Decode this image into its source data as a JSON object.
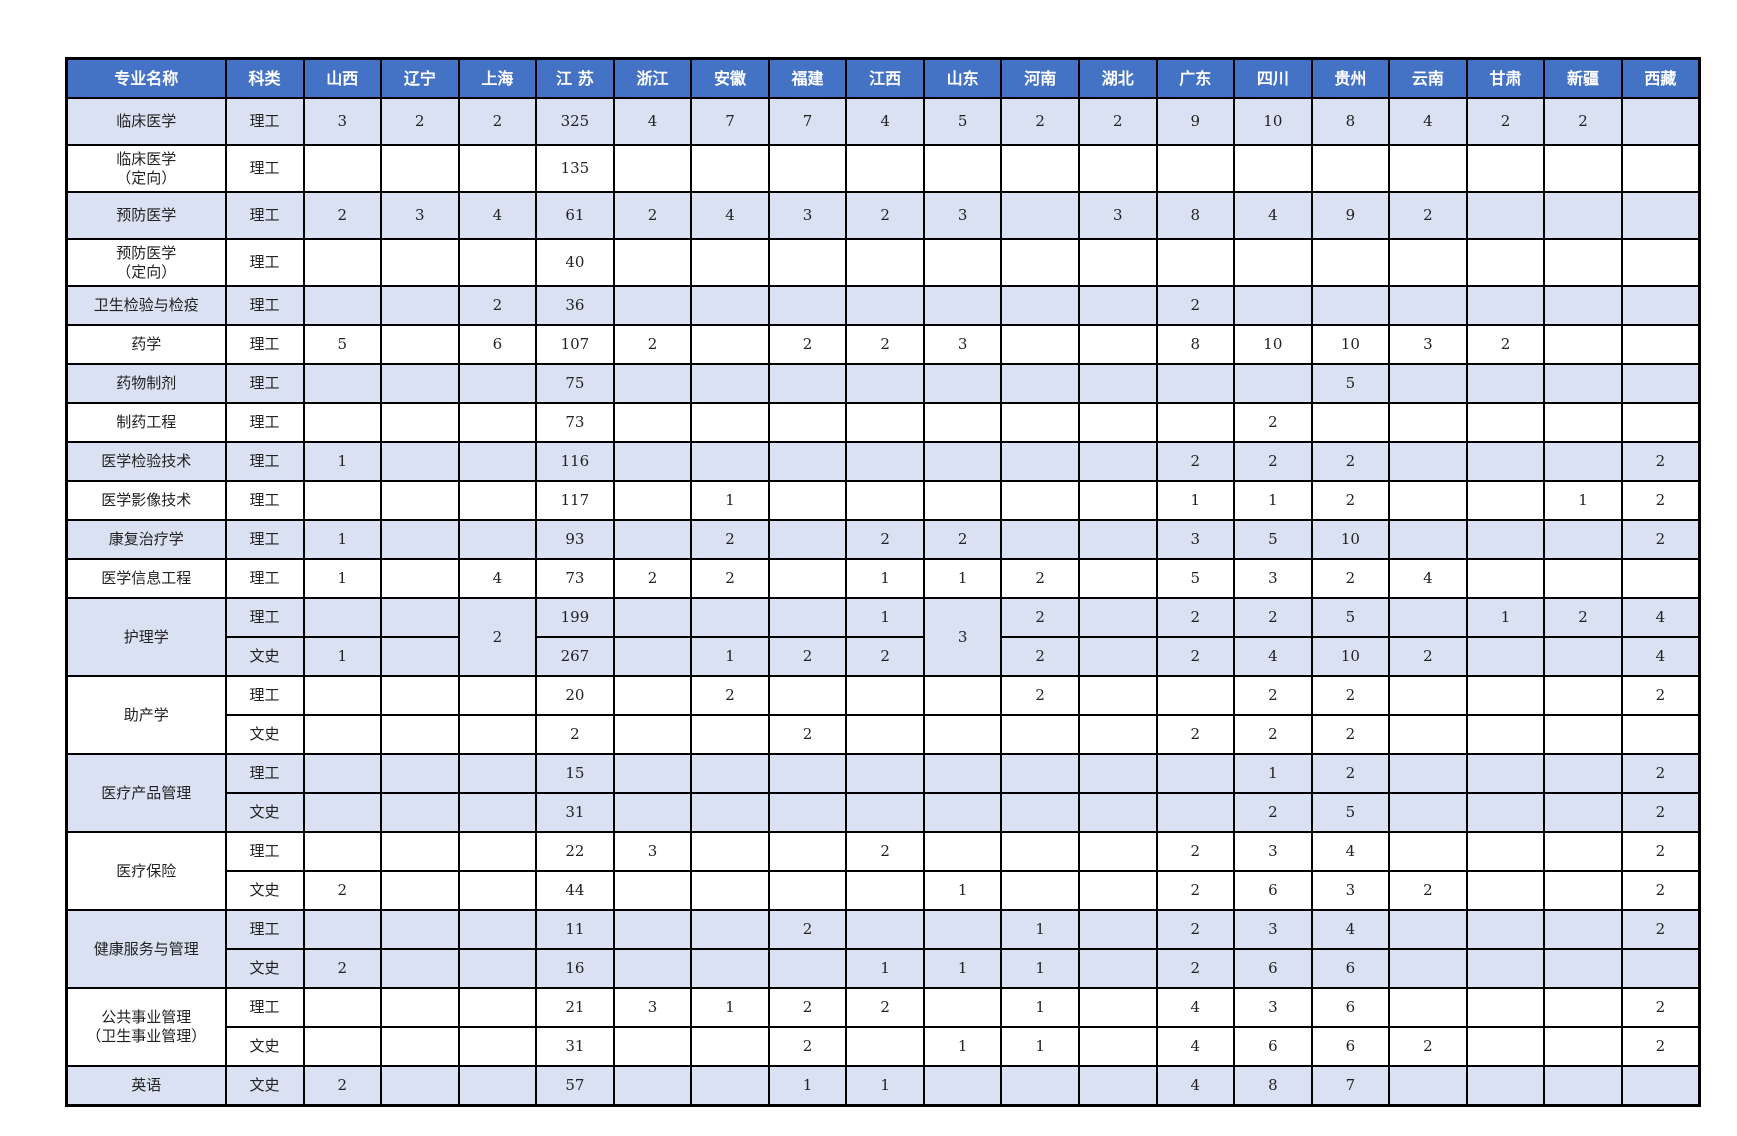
{
  "colors": {
    "header_bg": "#4472C4",
    "shade_bg": "#D9E1F2"
  },
  "headers": [
    "专业名称",
    "科类",
    "山西",
    "辽宁",
    "上海",
    "江 苏",
    "浙江",
    "安徽",
    "福建",
    "江西",
    "山东",
    "河南",
    "湖北",
    "广东",
    "四川",
    "贵州",
    "云南",
    "甘肃",
    "新疆",
    "西藏"
  ],
  "groups": [
    {
      "major": "临床医学",
      "shade": true,
      "tall": true,
      "rows": [
        {
          "cat": "理工",
          "vals": [
            "3",
            "2",
            "2",
            "325",
            "4",
            "7",
            "7",
            "4",
            "5",
            "2",
            "2",
            "9",
            "10",
            "8",
            "4",
            "2",
            "2",
            ""
          ]
        }
      ]
    },
    {
      "major": "临床医学\n（定向）",
      "shade": false,
      "tall": true,
      "rows": [
        {
          "cat": "理工",
          "vals": [
            "",
            "",
            "",
            "135",
            "",
            "",
            "",
            "",
            "",
            "",
            "",
            "",
            "",
            "",
            "",
            "",
            "",
            ""
          ]
        }
      ]
    },
    {
      "major": "预防医学",
      "shade": true,
      "tall": true,
      "rows": [
        {
          "cat": "理工",
          "vals": [
            "2",
            "3",
            "4",
            "61",
            "2",
            "4",
            "3",
            "2",
            "3",
            "",
            "3",
            "8",
            "4",
            "9",
            "2",
            "",
            "",
            ""
          ]
        }
      ]
    },
    {
      "major": "预防医学\n（定向）",
      "shade": false,
      "tall": true,
      "rows": [
        {
          "cat": "理工",
          "vals": [
            "",
            "",
            "",
            "40",
            "",
            "",
            "",
            "",
            "",
            "",
            "",
            "",
            "",
            "",
            "",
            "",
            "",
            ""
          ]
        }
      ]
    },
    {
      "major": "卫生检验与检疫",
      "shade": true,
      "rows": [
        {
          "cat": "理工",
          "vals": [
            "",
            "",
            "2",
            "36",
            "",
            "",
            "",
            "",
            "",
            "",
            "",
            "2",
            "",
            "",
            "",
            "",
            "",
            ""
          ]
        }
      ]
    },
    {
      "major": "药学",
      "shade": false,
      "rows": [
        {
          "cat": "理工",
          "vals": [
            "5",
            "",
            "6",
            "107",
            "2",
            "",
            "2",
            "2",
            "3",
            "",
            "",
            "8",
            "10",
            "10",
            "3",
            "2",
            "",
            ""
          ]
        }
      ]
    },
    {
      "major": "药物制剂",
      "shade": true,
      "rows": [
        {
          "cat": "理工",
          "vals": [
            "",
            "",
            "",
            "75",
            "",
            "",
            "",
            "",
            "",
            "",
            "",
            "",
            "",
            "5",
            "",
            "",
            "",
            ""
          ]
        }
      ]
    },
    {
      "major": "制药工程",
      "shade": false,
      "rows": [
        {
          "cat": "理工",
          "vals": [
            "",
            "",
            "",
            "73",
            "",
            "",
            "",
            "",
            "",
            "",
            "",
            "",
            "2",
            "",
            "",
            "",
            "",
            ""
          ]
        }
      ]
    },
    {
      "major": "医学检验技术",
      "shade": true,
      "rows": [
        {
          "cat": "理工",
          "vals": [
            "1",
            "",
            "",
            "116",
            "",
            "",
            "",
            "",
            "",
            "",
            "",
            "2",
            "2",
            "2",
            "",
            "",
            "",
            "2"
          ]
        }
      ]
    },
    {
      "major": "医学影像技术",
      "shade": false,
      "rows": [
        {
          "cat": "理工",
          "vals": [
            "",
            "",
            "",
            "117",
            "",
            "1",
            "",
            "",
            "",
            "",
            "",
            "1",
            "1",
            "2",
            "",
            "",
            "1",
            "2"
          ]
        }
      ]
    },
    {
      "major": "康复治疗学",
      "shade": true,
      "rows": [
        {
          "cat": "理工",
          "vals": [
            "1",
            "",
            "",
            "93",
            "",
            "2",
            "",
            "2",
            "2",
            "",
            "",
            "3",
            "5",
            "10",
            "",
            "",
            "",
            "2"
          ]
        }
      ]
    },
    {
      "major": "医学信息工程",
      "shade": false,
      "rows": [
        {
          "cat": "理工",
          "vals": [
            "1",
            "",
            "4",
            "73",
            "2",
            "2",
            "",
            "1",
            "1",
            "2",
            "",
            "5",
            "3",
            "2",
            "4",
            "",
            "",
            ""
          ]
        }
      ]
    },
    {
      "major": "护理学",
      "shade": true,
      "merge": [
        2,
        8
      ],
      "rows": [
        {
          "cat": "理工",
          "vals": [
            "",
            "",
            "2",
            "199",
            "",
            "",
            "",
            "1",
            "3",
            "2",
            "",
            "2",
            "2",
            "5",
            "",
            "1",
            "2",
            "4"
          ]
        },
        {
          "cat": "文史",
          "vals": [
            "1",
            "",
            "",
            "267",
            "",
            "1",
            "2",
            "2",
            "",
            "2",
            "",
            "2",
            "4",
            "10",
            "2",
            "",
            "",
            "4"
          ]
        }
      ]
    },
    {
      "major": "助产学",
      "shade": false,
      "rows": [
        {
          "cat": "理工",
          "vals": [
            "",
            "",
            "",
            "20",
            "",
            "2",
            "",
            "",
            "",
            "2",
            "",
            "",
            "2",
            "2",
            "",
            "",
            "",
            "2"
          ]
        },
        {
          "cat": "文史",
          "vals": [
            "",
            "",
            "",
            "2",
            "",
            "",
            "2",
            "",
            "",
            "",
            "",
            "2",
            "2",
            "2",
            "",
            "",
            "",
            ""
          ]
        }
      ]
    },
    {
      "major": "医疗产品管理",
      "shade": true,
      "rows": [
        {
          "cat": "理工",
          "vals": [
            "",
            "",
            "",
            "15",
            "",
            "",
            "",
            "",
            "",
            "",
            "",
            "",
            "1",
            "2",
            "",
            "",
            "",
            "2"
          ]
        },
        {
          "cat": "文史",
          "vals": [
            "",
            "",
            "",
            "31",
            "",
            "",
            "",
            "",
            "",
            "",
            "",
            "",
            "2",
            "5",
            "",
            "",
            "",
            "2"
          ]
        }
      ]
    },
    {
      "major": "医疗保险",
      "shade": false,
      "rows": [
        {
          "cat": "理工",
          "vals": [
            "",
            "",
            "",
            "22",
            "3",
            "",
            "",
            "2",
            "",
            "",
            "",
            "2",
            "3",
            "4",
            "",
            "",
            "",
            "2"
          ]
        },
        {
          "cat": "文史",
          "vals": [
            "2",
            "",
            "",
            "44",
            "",
            "",
            "",
            "",
            "1",
            "",
            "",
            "2",
            "6",
            "3",
            "2",
            "",
            "",
            "2"
          ]
        }
      ]
    },
    {
      "major": "健康服务与管理",
      "shade": true,
      "rows": [
        {
          "cat": "理工",
          "vals": [
            "",
            "",
            "",
            "11",
            "",
            "",
            "2",
            "",
            "",
            "1",
            "",
            "2",
            "3",
            "4",
            "",
            "",
            "",
            "2"
          ]
        },
        {
          "cat": "文史",
          "vals": [
            "2",
            "",
            "",
            "16",
            "",
            "",
            "",
            "1",
            "1",
            "1",
            "",
            "2",
            "6",
            "6",
            "",
            "",
            "",
            ""
          ]
        }
      ]
    },
    {
      "major": "公共事业管理\n（卫生事业管理）",
      "shade": false,
      "rows": [
        {
          "cat": "理工",
          "vals": [
            "",
            "",
            "",
            "21",
            "3",
            "1",
            "2",
            "2",
            "",
            "1",
            "",
            "4",
            "3",
            "6",
            "",
            "",
            "",
            "2"
          ]
        },
        {
          "cat": "文史",
          "vals": [
            "",
            "",
            "",
            "31",
            "",
            "",
            "2",
            "",
            "1",
            "1",
            "",
            "4",
            "6",
            "6",
            "2",
            "",
            "",
            "2"
          ]
        }
      ]
    },
    {
      "major": "英语",
      "shade": true,
      "rows": [
        {
          "cat": "文史",
          "vals": [
            "2",
            "",
            "",
            "57",
            "",
            "",
            "1",
            "1",
            "",
            "",
            "",
            "4",
            "8",
            "7",
            "",
            "",
            "",
            ""
          ]
        }
      ]
    }
  ]
}
